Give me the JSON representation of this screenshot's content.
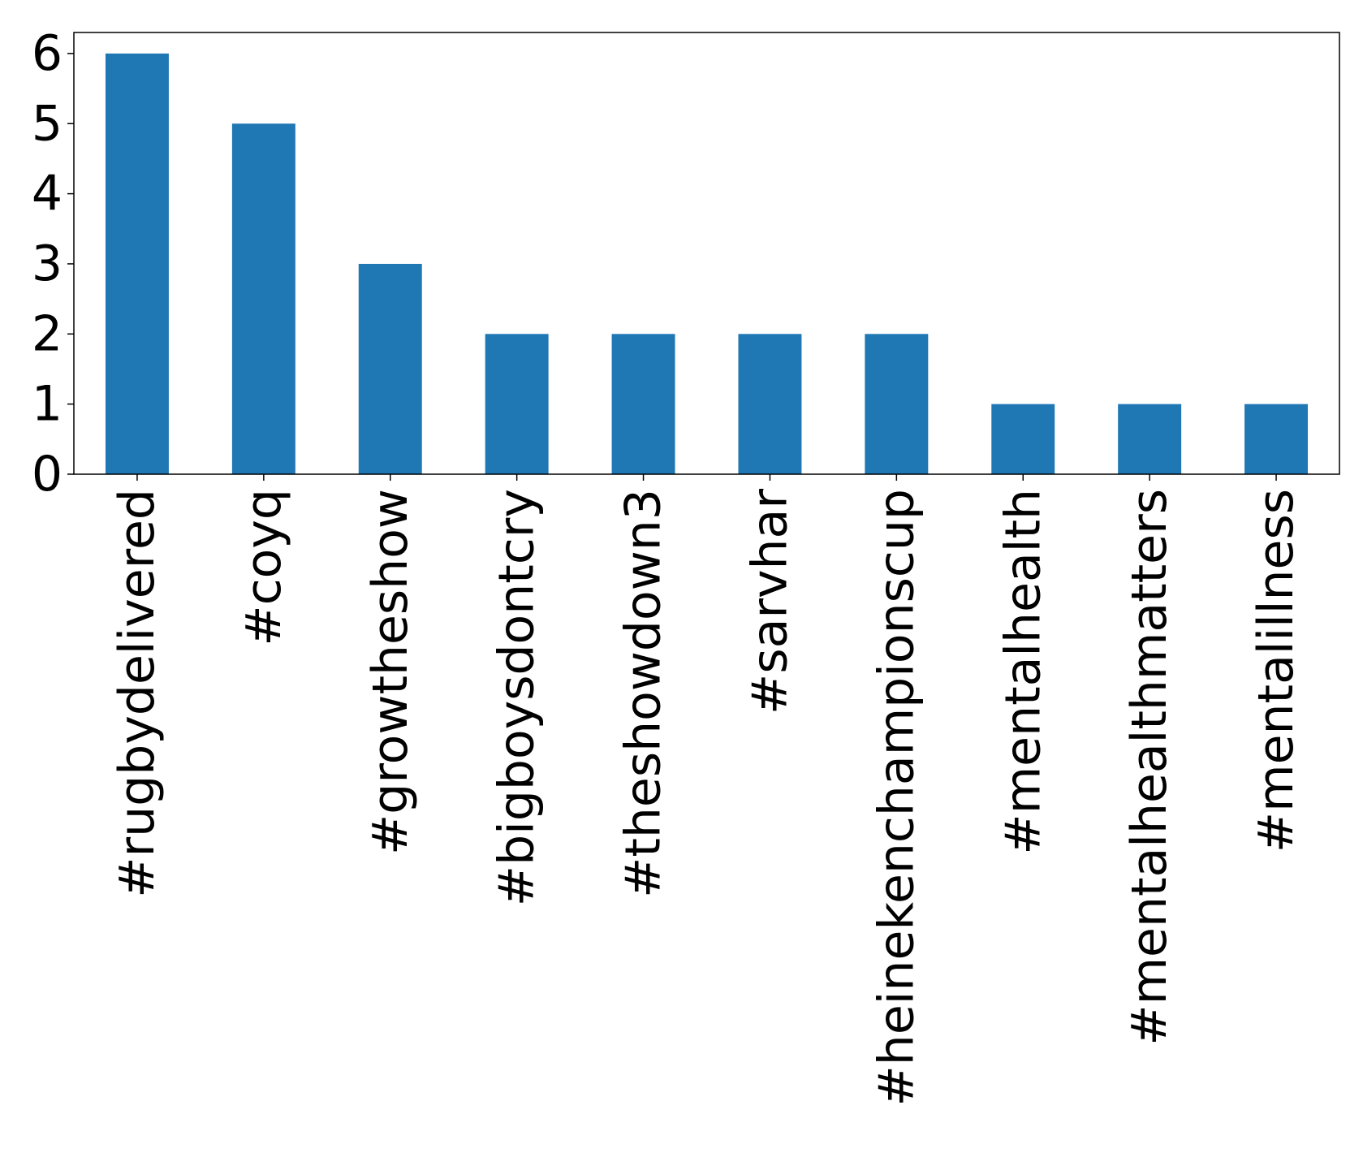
{
  "chart_data": {
    "type": "bar",
    "categories": [
      "#rugbydelivered",
      "#coyq",
      "#growtheshow",
      "#bigboysdontcry",
      "#theshowdown3",
      "#sarvhar",
      "#heinekenchampionscup",
      "#mentalhealth",
      "#mentalhealthmatters",
      "#mentalillness"
    ],
    "values": [
      6,
      5,
      3,
      2,
      2,
      2,
      2,
      1,
      1,
      1
    ],
    "yticks": [
      0,
      1,
      2,
      3,
      4,
      5,
      6
    ],
    "ylim": [
      0,
      6.3
    ],
    "title": "",
    "xlabel": "",
    "ylabel": "",
    "bar_color": "#1f77b4",
    "grid": false,
    "legend": "none"
  }
}
